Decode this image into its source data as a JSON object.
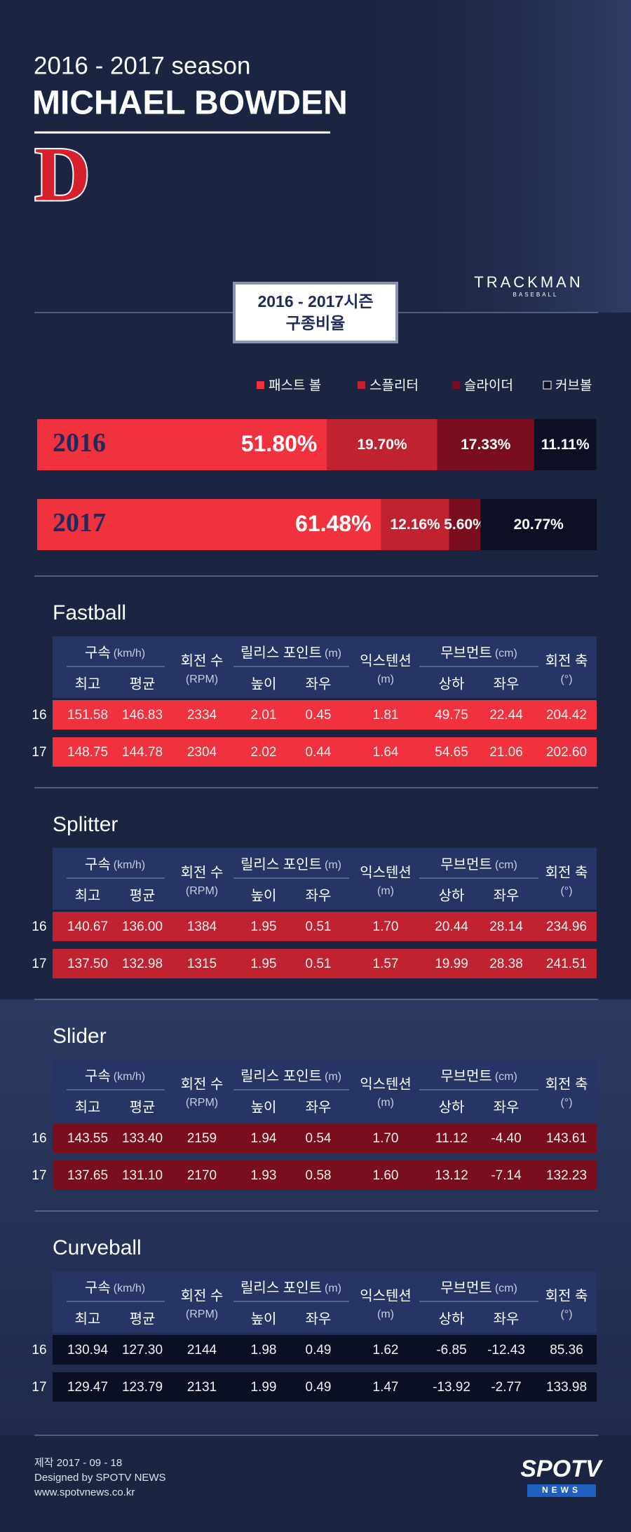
{
  "header": {
    "season": "2016 - 2017 season",
    "player": "MICHAEL BOWDEN",
    "logo": "D",
    "brand": "TRACKMAN",
    "brand_sub": "BASEBALL"
  },
  "pitch_mix": {
    "title_line1": "2016 - 2017시즌",
    "title_line2": "구종비율",
    "series": [
      {
        "name": "패스트 볼",
        "color": "#f0323e"
      },
      {
        "name": "스플리터",
        "color": "#c0222f"
      },
      {
        "name": "슬라이더",
        "color": "#7a0e1e"
      },
      {
        "name": "커브볼",
        "color": "#0d0f24"
      }
    ],
    "rows": [
      {
        "year": "2016",
        "values": [
          51.8,
          19.7,
          17.33,
          11.11
        ],
        "value_labels": [
          "51.80%",
          "19.70%",
          "17.33%",
          "11.11%"
        ]
      },
      {
        "year": "2017",
        "values": [
          61.48,
          12.16,
          5.6,
          20.77
        ],
        "value_labels": [
          "61.48%",
          "12.16%",
          "5.60%",
          "20.77%"
        ]
      }
    ]
  },
  "table_header": {
    "speed": "구속",
    "speed_unit": "(km/h)",
    "spin": "회전 수",
    "spin_unit": "(RPM)",
    "release": "릴리스 포인트",
    "release_unit": "(m)",
    "extension": "익스텐션",
    "extension_unit": "(m)",
    "movement": "무브먼트",
    "movement_unit": "(cm)",
    "axis": "회전 축",
    "axis_unit": "(°)",
    "max": "최고",
    "avg": "평균",
    "height": "높이",
    "side": "좌우",
    "vertical": "상하",
    "horizontal": "좌우"
  },
  "sections": [
    {
      "title": "Fastball",
      "color": "#f0323e",
      "rows": [
        {
          "label": "16",
          "cells": [
            "151.58",
            "146.83",
            "2334",
            "2.01",
            "0.45",
            "1.81",
            "49.75",
            "22.44",
            "204.42"
          ]
        },
        {
          "label": "17",
          "cells": [
            "148.75",
            "144.78",
            "2304",
            "2.02",
            "0.44",
            "1.64",
            "54.65",
            "21.06",
            "202.60"
          ]
        }
      ]
    },
    {
      "title": "Splitter",
      "color": "#c0222f",
      "rows": [
        {
          "label": "16",
          "cells": [
            "140.67",
            "136.00",
            "1384",
            "1.95",
            "0.51",
            "1.70",
            "20.44",
            "28.14",
            "234.96"
          ]
        },
        {
          "label": "17",
          "cells": [
            "137.50",
            "132.98",
            "1315",
            "1.95",
            "0.51",
            "1.57",
            "19.99",
            "28.38",
            "241.51"
          ]
        }
      ]
    },
    {
      "title": "Slider",
      "color": "#7a0e1e",
      "rows": [
        {
          "label": "16",
          "cells": [
            "143.55",
            "133.40",
            "2159",
            "1.94",
            "0.54",
            "1.70",
            "11.12",
            "-4.40",
            "143.61"
          ]
        },
        {
          "label": "17",
          "cells": [
            "137.65",
            "131.10",
            "2170",
            "1.93",
            "0.58",
            "1.60",
            "13.12",
            "-7.14",
            "132.23"
          ]
        }
      ]
    },
    {
      "title": "Curveball",
      "color": "#0b0f24",
      "rows": [
        {
          "label": "16",
          "cells": [
            "130.94",
            "127.30",
            "2144",
            "1.98",
            "0.49",
            "1.62",
            "-6.85",
            "-12.43",
            "85.36"
          ]
        },
        {
          "label": "17",
          "cells": [
            "129.47",
            "123.79",
            "2131",
            "1.99",
            "0.49",
            "1.47",
            "-13.92",
            "-2.77",
            "133.98"
          ]
        }
      ]
    }
  ],
  "footer": {
    "made": "제작 2017 - 09 - 18",
    "designed": "Designed by SPOTV NEWS",
    "url": "www.spotvnews.co.kr",
    "logo": "SPOTV",
    "logo_sub": "NEWS"
  }
}
